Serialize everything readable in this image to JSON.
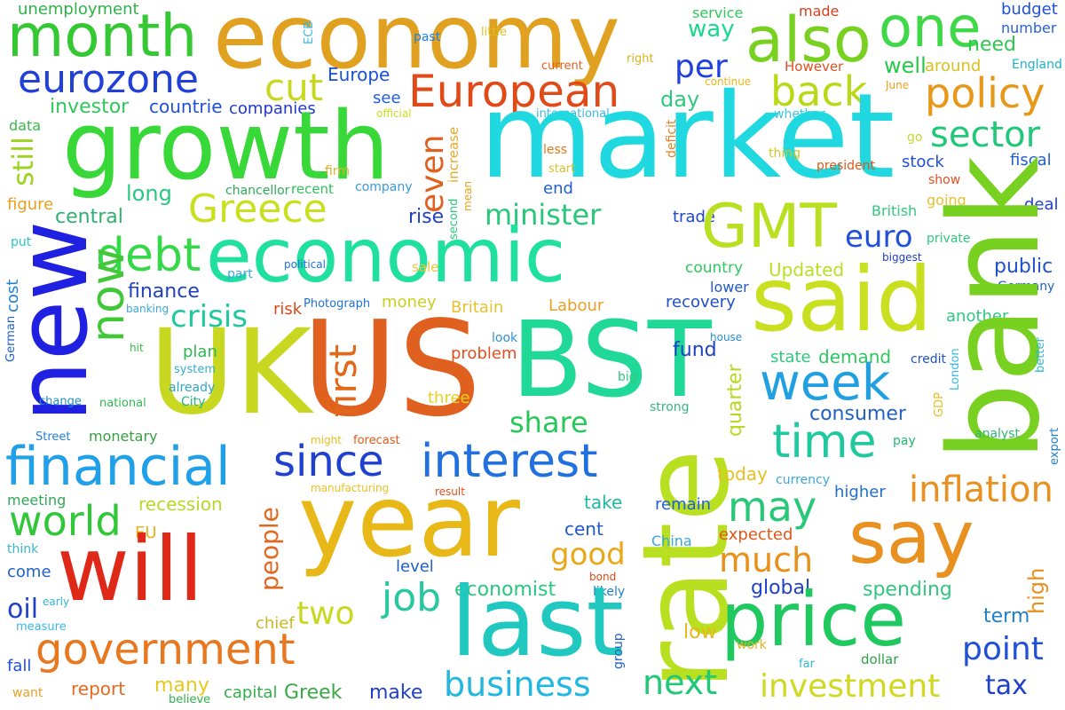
{
  "words": [
    {
      "text": "unemployment",
      "color": "#2fb24b"
    },
    {
      "text": "economy",
      "color": "#e0a020"
    },
    {
      "text": "ECB",
      "color": "#38b8e8"
    },
    {
      "text": "service",
      "color": "#2fc85a"
    },
    {
      "text": "made",
      "color": "#d84020"
    },
    {
      "text": "budget",
      "color": "#2050d8"
    },
    {
      "text": "month",
      "color": "#34c832"
    },
    {
      "text": "also",
      "color": "#78d020"
    },
    {
      "text": "one",
      "color": "#3ed848"
    },
    {
      "text": "little",
      "color": "#e0c020"
    },
    {
      "text": "right",
      "color": "#d8b020"
    },
    {
      "text": "way",
      "color": "#18d890"
    },
    {
      "text": "number",
      "color": "#2a60e0"
    },
    {
      "text": "past",
      "color": "#2080e0"
    },
    {
      "text": "eurozone",
      "color": "#2040d8"
    },
    {
      "text": "current",
      "color": "#e06020"
    },
    {
      "text": "need",
      "color": "#2ec84e"
    },
    {
      "text": "England",
      "color": "#20b0c8"
    },
    {
      "text": "Europe",
      "color": "#1850d8"
    },
    {
      "text": "European",
      "color": "#e04a18"
    },
    {
      "text": "per",
      "color": "#2040e0"
    },
    {
      "text": "However",
      "color": "#e05020"
    },
    {
      "text": "well",
      "color": "#28c848"
    },
    {
      "text": "around",
      "color": "#d8c020"
    },
    {
      "text": "cut",
      "color": "#c8d820"
    },
    {
      "text": "continue",
      "color": "#e8b818"
    },
    {
      "text": "back",
      "color": "#b8d818"
    },
    {
      "text": "June",
      "color": "#e8a018"
    },
    {
      "text": "policy",
      "color": "#e89818"
    },
    {
      "text": "investor",
      "color": "#2ec85a"
    },
    {
      "text": "countrie",
      "color": "#2050d8"
    },
    {
      "text": "companies",
      "color": "#2038d0"
    },
    {
      "text": "see",
      "color": "#2060d8"
    },
    {
      "text": "international",
      "color": "#38b8e0"
    },
    {
      "text": "day",
      "color": "#30c880"
    },
    {
      "text": "whether",
      "color": "#38c8d8"
    },
    {
      "text": "official",
      "color": "#c8e020"
    },
    {
      "text": "market",
      "color": "#20d8e0"
    },
    {
      "text": "still",
      "color": "#9cd420"
    },
    {
      "text": "data",
      "color": "#3ab848"
    },
    {
      "text": "growth",
      "color": "#38d838"
    },
    {
      "text": "increase",
      "color": "#e8a828"
    },
    {
      "text": "less",
      "color": "#e07818"
    },
    {
      "text": "deficit",
      "color": "#e88020"
    },
    {
      "text": "thing",
      "color": "#d0c820"
    },
    {
      "text": "go",
      "color": "#c8d828"
    },
    {
      "text": "sector",
      "color": "#20c878"
    },
    {
      "text": "start",
      "color": "#d8c030"
    },
    {
      "text": "president",
      "color": "#e05818"
    },
    {
      "text": "stock",
      "color": "#2050d8"
    },
    {
      "text": "fiscal",
      "color": "#2060c8"
    },
    {
      "text": "even",
      "color": "#e06020"
    },
    {
      "text": "firm",
      "color": "#d8b028"
    },
    {
      "text": "recent",
      "color": "#30c060"
    },
    {
      "text": "company",
      "color": "#3898e0"
    },
    {
      "text": "mean",
      "color": "#e8a018"
    },
    {
      "text": "show",
      "color": "#e05020"
    },
    {
      "text": "chancellor",
      "color": "#30a858"
    },
    {
      "text": "second",
      "color": "#30c880"
    },
    {
      "text": "end",
      "color": "#2060d0"
    },
    {
      "text": "going",
      "color": "#e8c030"
    },
    {
      "text": "figure",
      "color": "#e8a020"
    },
    {
      "text": "Greece",
      "color": "#c8e020"
    },
    {
      "text": "long",
      "color": "#28c880"
    },
    {
      "text": "central",
      "color": "#30b070"
    },
    {
      "text": "minister",
      "color": "#28c878"
    },
    {
      "text": "rise",
      "color": "#2040c8"
    },
    {
      "text": "trade",
      "color": "#2048c8"
    },
    {
      "text": "GMT",
      "color": "#b8e020"
    },
    {
      "text": "British",
      "color": "#30c880"
    },
    {
      "text": "deal",
      "color": "#2040c8"
    },
    {
      "text": "new",
      "color": "#2020e0"
    },
    {
      "text": "put",
      "color": "#28c8c8"
    },
    {
      "text": "debt",
      "color": "#34d848"
    },
    {
      "text": "economic",
      "color": "#20e0a0"
    },
    {
      "text": "euro",
      "color": "#2050d8"
    },
    {
      "text": "private",
      "color": "#30c880"
    },
    {
      "text": "political",
      "color": "#2070d8"
    },
    {
      "text": "sale",
      "color": "#e8c838"
    },
    {
      "text": "country",
      "color": "#2ec860"
    },
    {
      "text": "biggest",
      "color": "#2040c8"
    },
    {
      "text": "cost",
      "color": "#2080d0"
    },
    {
      "text": "part",
      "color": "#38a8d8"
    },
    {
      "text": "Updated",
      "color": "#b8e020"
    },
    {
      "text": "public",
      "color": "#2050d0"
    },
    {
      "text": "now",
      "color": "#40c838"
    },
    {
      "text": "finance",
      "color": "#2040c0"
    },
    {
      "text": "lower",
      "color": "#2058c8"
    },
    {
      "text": "said",
      "color": "#c8e020"
    },
    {
      "text": "Germany",
      "color": "#2060c8"
    },
    {
      "text": "crisis",
      "color": "#20c8a0"
    },
    {
      "text": "money",
      "color": "#c8d020"
    },
    {
      "text": "Photograph",
      "color": "#2070d8"
    },
    {
      "text": "risk",
      "color": "#e04818"
    },
    {
      "text": "banking",
      "color": "#38a8d8"
    },
    {
      "text": "Britain",
      "color": "#e8c030"
    },
    {
      "text": "Labour",
      "color": "#e8a028"
    },
    {
      "text": "recovery",
      "color": "#2050c8"
    },
    {
      "text": "another",
      "color": "#30c880"
    },
    {
      "text": "German",
      "color": "#2060c8"
    },
    {
      "text": "UK",
      "color": "#c8d820"
    },
    {
      "text": "US",
      "color": "#e06020"
    },
    {
      "text": "BST",
      "color": "#20d898"
    },
    {
      "text": "house",
      "color": "#2090d8"
    },
    {
      "text": "look",
      "color": "#3090d8"
    },
    {
      "text": "bank",
      "color": "#78d020"
    },
    {
      "text": "better",
      "color": "#30b8d0"
    },
    {
      "text": "hit",
      "color": "#38b848"
    },
    {
      "text": "plan",
      "color": "#30b850"
    },
    {
      "text": "problem",
      "color": "#e05020"
    },
    {
      "text": "fund",
      "color": "#2040c8"
    },
    {
      "text": "state",
      "color": "#30c880"
    },
    {
      "text": "demand",
      "color": "#2ec860"
    },
    {
      "text": "credit",
      "color": "#2050c8"
    },
    {
      "text": "system",
      "color": "#38b0c8"
    },
    {
      "text": "London",
      "color": "#38b8e0"
    },
    {
      "text": "first",
      "color": "#e06818"
    },
    {
      "text": "already",
      "color": "#30a8c8"
    },
    {
      "text": "week",
      "color": "#20a0e0"
    },
    {
      "text": "big",
      "color": "#2ec880"
    },
    {
      "text": "City",
      "color": "#20b880"
    },
    {
      "text": "change",
      "color": "#2090c0"
    },
    {
      "text": "national",
      "color": "#30b850"
    },
    {
      "text": "three",
      "color": "#e8d020"
    },
    {
      "text": "quarter",
      "color": "#b8d820"
    },
    {
      "text": "consumer",
      "color": "#2060c8"
    },
    {
      "text": "GDP",
      "color": "#e8c020"
    },
    {
      "text": "strong",
      "color": "#38b880"
    },
    {
      "text": "share",
      "color": "#28c858"
    },
    {
      "text": "Street",
      "color": "#2080d8"
    },
    {
      "text": "monetary",
      "color": "#38a040"
    },
    {
      "text": "might",
      "color": "#e8c020"
    },
    {
      "text": "forecast",
      "color": "#e05818"
    },
    {
      "text": "time",
      "color": "#20c8a0"
    },
    {
      "text": "pay",
      "color": "#20b870"
    },
    {
      "text": "analyst",
      "color": "#30b870"
    },
    {
      "text": "export",
      "color": "#2080c8"
    },
    {
      "text": "financial",
      "color": "#20a0e8"
    },
    {
      "text": "since",
      "color": "#2040d0"
    },
    {
      "text": "interest",
      "color": "#2070e0"
    },
    {
      "text": "rate",
      "color": "#b8e020"
    },
    {
      "text": "manufacturing",
      "color": "#e8c020"
    },
    {
      "text": "result",
      "color": "#e05020"
    },
    {
      "text": "today",
      "color": "#e8c020"
    },
    {
      "text": "currency",
      "color": "#38a8d8"
    },
    {
      "text": "meeting",
      "color": "#30a858"
    },
    {
      "text": "higher",
      "color": "#2070c8"
    },
    {
      "text": "inflation",
      "color": "#e89020"
    },
    {
      "text": "world",
      "color": "#30c838"
    },
    {
      "text": "recession",
      "color": "#b8d828"
    },
    {
      "text": "year",
      "color": "#e8b818"
    },
    {
      "text": "take",
      "color": "#20b8a0"
    },
    {
      "text": "remain",
      "color": "#2060d0"
    },
    {
      "text": "may",
      "color": "#28c878"
    },
    {
      "text": "EU",
      "color": "#e8b018"
    },
    {
      "text": "people",
      "color": "#e06820"
    },
    {
      "text": "cent",
      "color": "#2058c8"
    },
    {
      "text": "expected",
      "color": "#e05818"
    },
    {
      "text": "say",
      "color": "#e89020"
    },
    {
      "text": "will",
      "color": "#e02818"
    },
    {
      "text": "think",
      "color": "#38b8d0"
    },
    {
      "text": "good",
      "color": "#e8a818"
    },
    {
      "text": "China",
      "color": "#38a8d8"
    },
    {
      "text": "much",
      "color": "#e89018"
    },
    {
      "text": "come",
      "color": "#2060c8"
    },
    {
      "text": "level",
      "color": "#2060c8"
    },
    {
      "text": "bond",
      "color": "#e04818"
    },
    {
      "text": "economist",
      "color": "#28c880"
    },
    {
      "text": "global",
      "color": "#2040c8"
    },
    {
      "text": "spending",
      "color": "#30c880"
    },
    {
      "text": "high",
      "color": "#e89020"
    },
    {
      "text": "oil",
      "color": "#2040c8"
    },
    {
      "text": "early",
      "color": "#30b8d0"
    },
    {
      "text": "job",
      "color": "#28c8a0"
    },
    {
      "text": "likely",
      "color": "#2080d8"
    },
    {
      "text": "last",
      "color": "#20c8c0"
    },
    {
      "text": "price",
      "color": "#20c860"
    },
    {
      "text": "two",
      "color": "#c8d820"
    },
    {
      "text": "measure",
      "color": "#38b8e0"
    },
    {
      "text": "chief",
      "color": "#c8b828"
    },
    {
      "text": "group",
      "color": "#2060c8"
    },
    {
      "text": "low",
      "color": "#e8b818"
    },
    {
      "text": "work",
      "color": "#e8b018"
    },
    {
      "text": "term",
      "color": "#2080c8"
    },
    {
      "text": "government",
      "color": "#e87820"
    },
    {
      "text": "dollar",
      "color": "#30a048"
    },
    {
      "text": "point",
      "color": "#2050d8"
    },
    {
      "text": "fall",
      "color": "#2050d8"
    },
    {
      "text": "far",
      "color": "#30b8d0"
    },
    {
      "text": "report",
      "color": "#e86820"
    },
    {
      "text": "many",
      "color": "#e8c820"
    },
    {
      "text": "capital",
      "color": "#30b048"
    },
    {
      "text": "Greek",
      "color": "#38a848"
    },
    {
      "text": "make",
      "color": "#2040c8"
    },
    {
      "text": "business",
      "color": "#20b8e0"
    },
    {
      "text": "next",
      "color": "#20c878"
    },
    {
      "text": "investment",
      "color": "#d0d820"
    },
    {
      "text": "tax",
      "color": "#2040c8"
    },
    {
      "text": "want",
      "color": "#e8a020"
    },
    {
      "text": "believe",
      "color": "#30b048"
    }
  ]
}
